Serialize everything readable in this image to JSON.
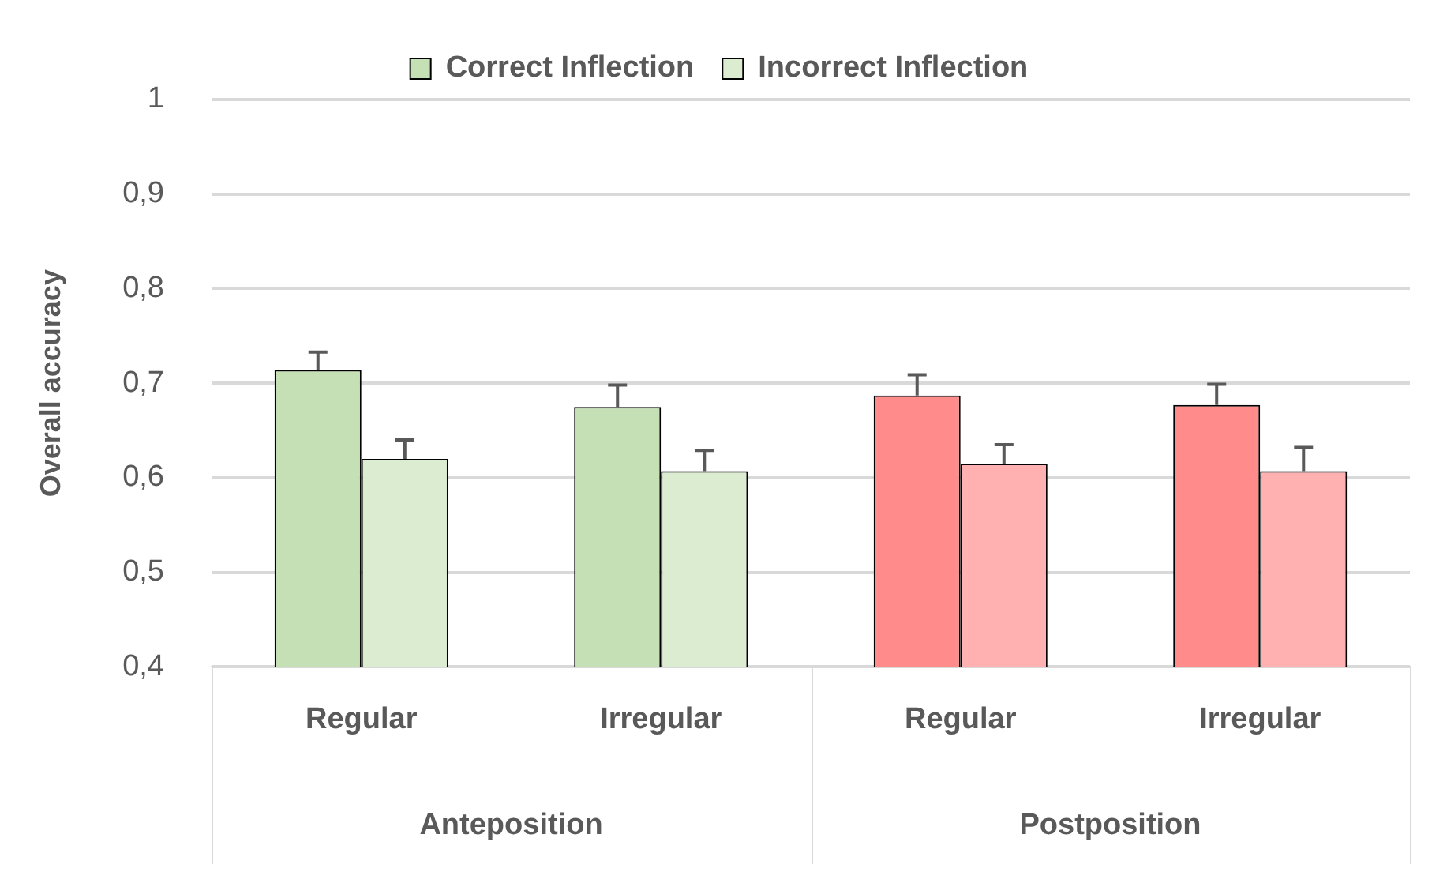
{
  "chart_data": {
    "type": "bar",
    "ylabel": "Overall accuracy",
    "categories": [
      "Regular",
      "Irregular",
      "Regular",
      "Irregular"
    ],
    "series": [
      {
        "name": "Correct Inflection",
        "color": "#c5e0b4",
        "colors": [
          "#c5e0b4",
          "#c5e0b4",
          "#ff8b8b",
          "#ff8b8b"
        ],
        "values": [
          0.714,
          0.675,
          0.687,
          0.677
        ],
        "errors": [
          [
            0.714,
            0.733
          ],
          [
            0.675,
            0.698
          ],
          [
            0.687,
            0.709
          ],
          [
            0.677,
            0.699
          ]
        ]
      },
      {
        "name": "Incorrect Inflection",
        "color": "#dcecd0",
        "colors": [
          "#dcecd0",
          "#dcecd0",
          "#ffb0b0",
          "#ffb0b0"
        ],
        "values": [
          0.62,
          0.607,
          0.615,
          0.607
        ],
        "errors": [
          [
            0.62,
            0.64
          ],
          [
            0.607,
            0.629
          ],
          [
            0.615,
            0.635
          ],
          [
            0.607,
            0.632
          ]
        ]
      }
    ],
    "annotations": [
      "Anteposition",
      "Postposition"
    ],
    "ylim": [
      0.4,
      1
    ],
    "yticks": [
      {
        "value": 0.4,
        "label": "0,4"
      },
      {
        "value": 0.5,
        "label": "0,5"
      },
      {
        "value": 0.6,
        "label": "0,6"
      },
      {
        "value": 0.7,
        "label": "0,7"
      },
      {
        "value": 0.8,
        "label": "0,8"
      },
      {
        "value": 0.9,
        "label": "0,9"
      },
      {
        "value": 1,
        "label": "1"
      }
    ],
    "grid": "y",
    "legend": "top"
  }
}
